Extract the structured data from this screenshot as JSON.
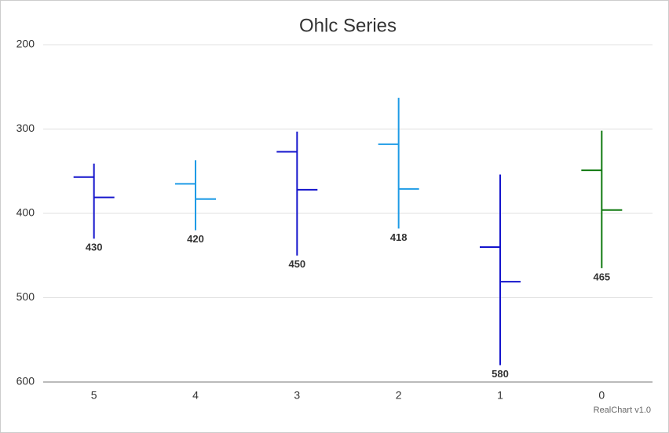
{
  "chart_data": {
    "type": "ohlc",
    "title": "Ohlc Series",
    "credit": "RealChart v1.0",
    "categories": [
      "5",
      "4",
      "3",
      "2",
      "1",
      "0"
    ],
    "open": [
      357,
      365,
      327,
      318,
      440,
      349
    ],
    "high": [
      430,
      420,
      450,
      418,
      580,
      465
    ],
    "low": [
      341,
      337,
      303,
      263,
      354,
      302
    ],
    "close": [
      381,
      383,
      372,
      371,
      481,
      396
    ],
    "colors": [
      "#1414cc",
      "#1e9be6",
      "#1414cc",
      "#1e9be6",
      "#1414cc",
      "#117a11"
    ],
    "ylim": [
      200,
      600
    ],
    "y_reversed": true,
    "yticks": [
      200,
      300,
      400,
      500,
      600
    ],
    "grid": true
  }
}
